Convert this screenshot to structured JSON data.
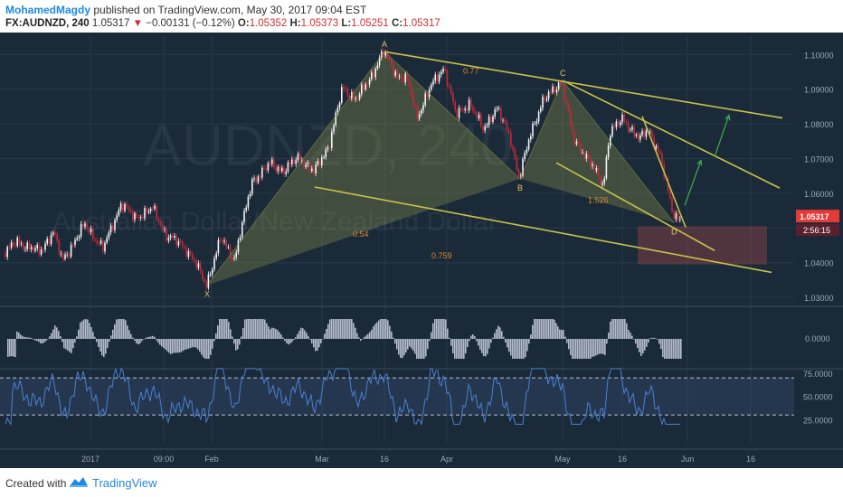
{
  "header": {
    "author": "MohamedMagdy",
    "published_text": "published on TradingView.com, May 30, 2017 09:04 EST",
    "symbol": "FX:AUDNZD, 240",
    "last": "1.05317",
    "change": "−0.00131 (−0.12%)",
    "open_label": "O:",
    "open": "1.05352",
    "high_label": "H:",
    "high": "1.05373",
    "low_label": "L:",
    "low": "1.05251",
    "close_label": "C:",
    "close": "1.05317"
  },
  "footer": {
    "created_with": "Created with",
    "brand": "TradingView"
  },
  "colors": {
    "background": "#1b2a38",
    "grid": "#26384a",
    "up_candle": "#f5f5f5",
    "down_candle": "#c62839",
    "pattern_fill": "#a7a84e",
    "trendline": "#c9c24a",
    "arrow": "#3fae4c",
    "fib_label": "#d9862a",
    "rsi_line": "#4a7fd1",
    "price_badge": "#e53935",
    "sell_zone": "#b84a4a"
  },
  "chart_data": {
    "type": "candlestick",
    "watermark_title": "AUDNZD, 240",
    "watermark_subtitle": "Australian Dollar/New Zealand Dollar",
    "x_tick_labels": [
      "2017",
      "09:00",
      "Feb",
      "Mar",
      "16",
      "Apr",
      "May",
      "16",
      "Jun",
      "16"
    ],
    "y_tick_labels": [
      "1.10000",
      "1.09000",
      "1.08000",
      "1.07000",
      "1.06000",
      "1.05000",
      "1.04000",
      "1.03000"
    ],
    "ylim": [
      1.0282,
      1.1032
    ],
    "last_price_label": "1.05317",
    "countdown_label": "2:56:15",
    "price_path_anchors": [
      [
        0,
        1.0415
      ],
      [
        20,
        1.046
      ],
      [
        45,
        1.043
      ],
      [
        60,
        1.049
      ],
      [
        70,
        1.0405
      ],
      [
        95,
        1.051
      ],
      [
        115,
        1.044
      ],
      [
        135,
        1.057
      ],
      [
        150,
        1.053
      ],
      [
        170,
        1.0555
      ],
      [
        185,
        1.048
      ],
      [
        205,
        1.0445
      ],
      [
        215,
        1.041
      ],
      [
        229,
        1.0335
      ],
      [
        245,
        1.047
      ],
      [
        260,
        1.041
      ],
      [
        280,
        1.0635
      ],
      [
        300,
        1.0685
      ],
      [
        315,
        1.0665
      ],
      [
        332,
        1.0705
      ],
      [
        348,
        1.066
      ],
      [
        365,
        1.074
      ],
      [
        380,
        1.0905
      ],
      [
        395,
        1.087
      ],
      [
        410,
        1.093
      ],
      [
        425,
        1.1008
      ],
      [
        440,
        1.094
      ],
      [
        452,
        1.0925
      ],
      [
        462,
        1.082
      ],
      [
        478,
        1.091
      ],
      [
        492,
        1.0965
      ],
      [
        505,
        1.0825
      ],
      [
        520,
        1.086
      ],
      [
        535,
        1.0785
      ],
      [
        550,
        1.0845
      ],
      [
        565,
        1.0765
      ],
      [
        575,
        1.0642
      ],
      [
        588,
        1.0775
      ],
      [
        600,
        1.086
      ],
      [
        612,
        1.0895
      ],
      [
        622,
        1.0925
      ],
      [
        635,
        1.0755
      ],
      [
        650,
        1.0705
      ],
      [
        668,
        1.0622
      ],
      [
        675,
        1.0775
      ],
      [
        690,
        1.0815
      ],
      [
        708,
        1.0755
      ],
      [
        718,
        1.0785
      ],
      [
        730,
        1.0715
      ],
      [
        745,
        1.0545
      ],
      [
        752,
        1.0525
      ]
    ],
    "harmonic_pattern": {
      "points": [
        {
          "label": "X",
          "x": 229,
          "price": 1.0335
        },
        {
          "label": "A",
          "x": 425,
          "price": 1.1008
        },
        {
          "label": "B",
          "x": 575,
          "price": 1.0642
        },
        {
          "label": "C",
          "x": 622,
          "price": 1.0925
        },
        {
          "label": "D",
          "x": 745,
          "price": 1.0515
        }
      ],
      "ratio_labels": [
        {
          "text": "0.77",
          "x": 522,
          "price": 1.0945
        },
        {
          "text": "1.526",
          "x": 660,
          "price": 1.0572
        },
        {
          "text": "0.54",
          "x": 400,
          "price": 1.0475
        },
        {
          "text": "0.759",
          "x": 487,
          "price": 1.0412
        }
      ]
    },
    "trendlines": [
      {
        "x1": 425,
        "p1": 1.1008,
        "x2": 865,
        "p2": 1.0817
      },
      {
        "x1": 348,
        "p1": 1.0618,
        "x2": 853,
        "p2": 1.0372
      },
      {
        "x1": 615,
        "p1": 1.0688,
        "x2": 790,
        "p2": 1.0435
      },
      {
        "x1": 622,
        "p1": 1.0925,
        "x2": 862,
        "p2": 1.0615
      },
      {
        "x1": 710,
        "p1": 1.0822,
        "x2": 758,
        "p2": 1.0502
      }
    ],
    "projection_arrows": [
      {
        "x1": 757,
        "p1": 1.0565,
        "x2": 775,
        "p2": 1.0695
      },
      {
        "x1": 790,
        "p1": 1.0705,
        "x2": 806,
        "p2": 1.0825
      }
    ],
    "sell_zone": {
      "x1": 705,
      "x2": 848,
      "p_top": 1.0505,
      "p_bottom": 1.0395
    },
    "oscillator": {
      "zero_label": "0.0000"
    },
    "rsi": {
      "levels": [
        "75.0000",
        "50.0000",
        "25.0000"
      ],
      "upper": 70,
      "lower": 30
    }
  }
}
